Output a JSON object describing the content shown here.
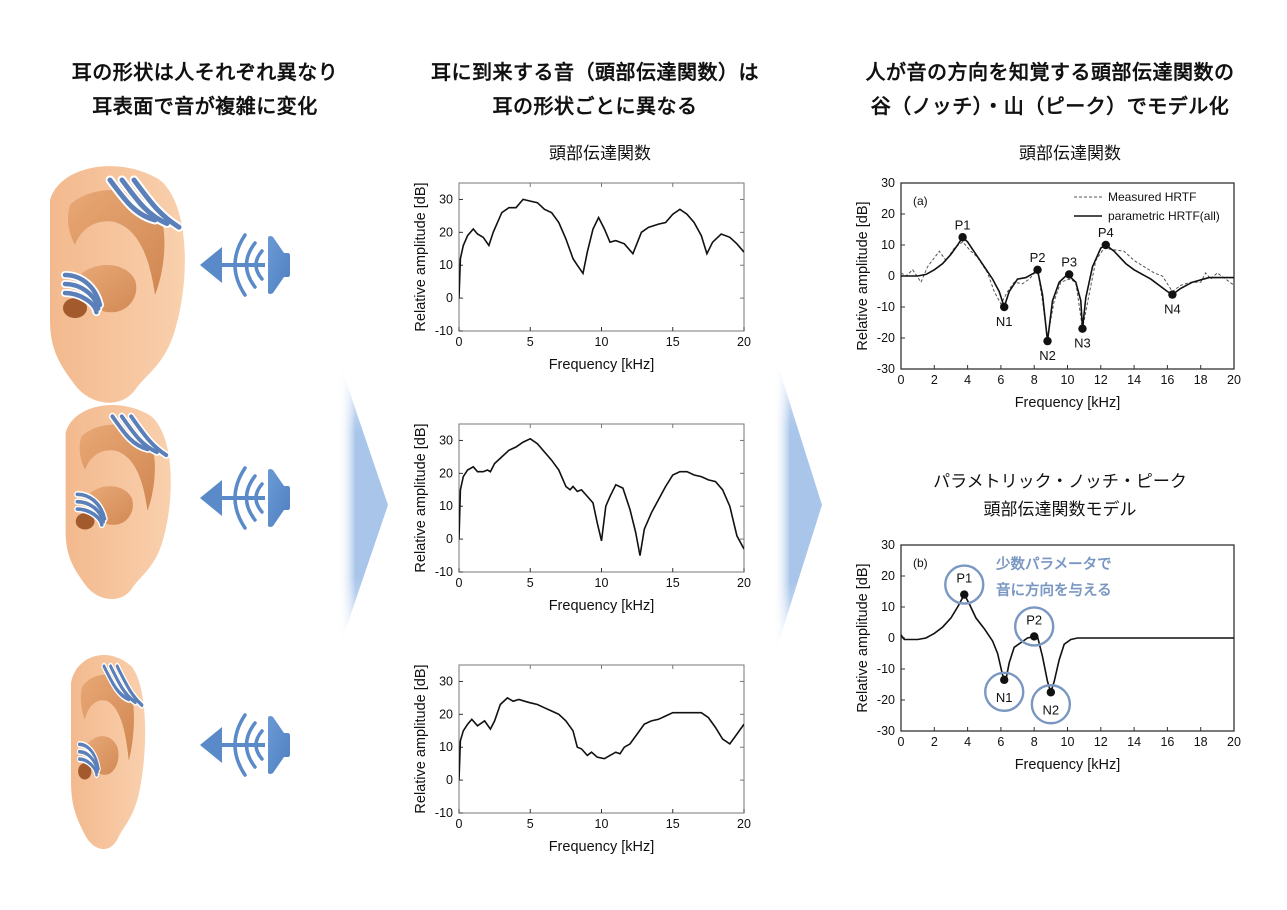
{
  "columns": [
    {
      "heading_line1": "耳の形状は人それぞれ異なり",
      "heading_line2": "耳表面で音が複雑に変化",
      "illustrations": [
        {
          "name": "ear-large",
          "icon": "ear-icon",
          "speaker_icon": "speaker-icon"
        },
        {
          "name": "ear-medium",
          "icon": "ear-icon",
          "speaker_icon": "speaker-icon"
        },
        {
          "name": "ear-small",
          "icon": "ear-icon",
          "speaker_icon": "speaker-icon"
        }
      ]
    },
    {
      "heading_line1": "耳に到来する音（頭部伝達関数）は",
      "heading_line2": "耳の形状ごとに異なる",
      "subtitle": "頭部伝達関数"
    },
    {
      "heading_line1": "人が音の方向を知覚する頭部伝達関数の",
      "heading_line2": "谷（ノッチ）・山（ピーク）でモデル化",
      "subtitle": "頭部伝達関数",
      "subtitle2_line1": "パラメトリック・ノッチ・ピーク",
      "subtitle2_line2": "頭部伝達関数モデル"
    }
  ],
  "colors": {
    "accent_blue": "#5b8ac8",
    "callout_blue": "#7a97c2",
    "arrow_blue": "#a9c6ea",
    "skin": "#f6c6a0",
    "skin_shadow": "#d98f58"
  },
  "chart_data": [
    {
      "id": "hrtf-ear-1",
      "type": "line",
      "title": "頭部伝達関数",
      "xlabel": "Frequency [kHz]",
      "ylabel": "Relative amplitude [dB]",
      "xlim": [
        0,
        20
      ],
      "ylim": [
        -10,
        35
      ],
      "xticks": [
        0,
        5,
        10,
        15,
        20
      ],
      "yticks": [
        -10,
        0,
        10,
        20,
        30
      ],
      "x": [
        0,
        0.1,
        0.3,
        0.6,
        1.0,
        1.3,
        1.7,
        2.1,
        2.4,
        3.0,
        3.5,
        4.0,
        4.5,
        5.0,
        5.5,
        6.0,
        6.5,
        7.0,
        7.5,
        8.0,
        8.3,
        8.7,
        9.0,
        9.4,
        9.8,
        10.2,
        10.6,
        11.0,
        11.6,
        12.2,
        12.8,
        13.3,
        14.0,
        14.5,
        15.0,
        15.5,
        16.0,
        16.5,
        17.0,
        17.4,
        17.8,
        18.4,
        19.0,
        19.5,
        20.0
      ],
      "y": [
        0,
        12,
        16,
        19,
        21,
        19.5,
        18.5,
        16,
        20,
        26,
        27.5,
        27.5,
        30,
        29.5,
        29,
        27,
        26,
        23,
        18,
        12,
        10,
        7.5,
        14,
        21,
        24.5,
        21,
        17,
        17.5,
        16.5,
        13.5,
        20,
        21.5,
        22.5,
        23,
        25.5,
        27,
        25.5,
        23,
        19,
        13.5,
        17,
        19.5,
        18.5,
        16.5,
        14
      ]
    },
    {
      "id": "hrtf-ear-2",
      "type": "line",
      "xlabel": "Frequency [kHz]",
      "ylabel": "Relative amplitude [dB]",
      "xlim": [
        0,
        20
      ],
      "ylim": [
        -10,
        35
      ],
      "xticks": [
        0,
        5,
        10,
        15,
        20
      ],
      "yticks": [
        -10,
        0,
        10,
        20,
        30
      ],
      "x": [
        0,
        0.1,
        0.3,
        0.6,
        1.0,
        1.3,
        1.7,
        2.0,
        2.2,
        2.5,
        3.0,
        3.5,
        4.0,
        4.5,
        5.0,
        5.5,
        6.0,
        6.5,
        7.0,
        7.5,
        7.8,
        8.0,
        8.3,
        8.6,
        9.0,
        9.4,
        9.7,
        10.0,
        10.3,
        10.6,
        11.0,
        11.5,
        12.0,
        12.4,
        12.7,
        13.0,
        13.5,
        14.0,
        14.5,
        15.0,
        15.5,
        16.0,
        16.5,
        17.0,
        17.5,
        18.0,
        18.5,
        19.0,
        19.5,
        20.0
      ],
      "y": [
        0,
        15,
        19,
        21,
        22,
        20.5,
        20.5,
        21,
        20.5,
        23,
        25,
        27,
        28,
        29.5,
        30.5,
        29,
        26.5,
        24,
        21,
        16,
        15,
        16,
        14.5,
        15,
        13,
        11,
        5,
        -0.5,
        10,
        13,
        16.5,
        15.5,
        9,
        2,
        -5,
        3,
        8,
        12,
        16,
        19.5,
        20.5,
        20.5,
        19.5,
        19,
        18,
        17.5,
        15,
        10,
        1,
        -3
      ]
    },
    {
      "id": "hrtf-ear-3",
      "type": "line",
      "xlabel": "Frequency [kHz]",
      "ylabel": "Relative amplitude [dB]",
      "xlim": [
        0,
        20
      ],
      "ylim": [
        -10,
        35
      ],
      "xticks": [
        0,
        5,
        10,
        15,
        20
      ],
      "yticks": [
        -10,
        0,
        10,
        20,
        30
      ],
      "x": [
        0,
        0.1,
        0.3,
        0.6,
        0.9,
        1.3,
        1.8,
        2.2,
        2.5,
        2.9,
        3.4,
        3.8,
        4.2,
        4.6,
        5.0,
        5.5,
        6.0,
        6.5,
        7.0,
        7.5,
        8.0,
        8.3,
        8.6,
        9.0,
        9.3,
        9.7,
        10.2,
        10.6,
        11.0,
        11.3,
        11.6,
        12.0,
        12.5,
        13.0,
        13.5,
        14.0,
        14.5,
        15.0,
        15.5,
        16.0,
        16.5,
        17.0,
        17.5,
        18.0,
        18.5,
        19.0,
        19.5,
        20.0
      ],
      "y": [
        0,
        12,
        15,
        17,
        18.5,
        16.5,
        18,
        15.5,
        18,
        23,
        25,
        24,
        24.5,
        24,
        23.5,
        23,
        22,
        21,
        20,
        18,
        15,
        10,
        9.5,
        7.5,
        8.5,
        7,
        6.5,
        7.5,
        8.5,
        8,
        10,
        11,
        14,
        17,
        18,
        18.5,
        19.5,
        20.5,
        20.5,
        20.5,
        20.5,
        20.5,
        19,
        16,
        12.5,
        11,
        14,
        17
      ]
    },
    {
      "id": "hrtf-measured-vs-parametric",
      "type": "line",
      "title": "頭部伝達関数",
      "panel_label": "(a)",
      "xlabel": "Frequency [kHz]",
      "ylabel": "Relative amplitude [dB]",
      "xlim": [
        0,
        20
      ],
      "ylim": [
        -30,
        30
      ],
      "xticks": [
        0,
        2,
        4,
        6,
        8,
        10,
        12,
        14,
        16,
        18,
        20
      ],
      "yticks": [
        -30,
        -20,
        -10,
        0,
        10,
        20,
        30
      ],
      "legend": [
        "Measured HRTF",
        "parametric HRTF(all)"
      ],
      "legend_position": "upper right",
      "series": [
        {
          "name": "Measured HRTF",
          "style": "dashed",
          "x": [
            0,
            0.3,
            0.7,
            1.2,
            1.6,
            2.3,
            2.7,
            3.2,
            3.7,
            4.2,
            4.6,
            5.2,
            5.6,
            6.0,
            6.4,
            6.8,
            7.3,
            7.7,
            8.2,
            8.5,
            8.8,
            9.2,
            9.6,
            10.1,
            10.5,
            10.9,
            11.3,
            11.7,
            12.2,
            12.7,
            13.4,
            14.0,
            14.6,
            15.2,
            15.7,
            16.3,
            16.8,
            17.4,
            18.0,
            18.3,
            18.6,
            19.0,
            19.5,
            20.0
          ],
          "y": [
            1,
            0,
            2,
            -2,
            3,
            8,
            5,
            9,
            11,
            8,
            6,
            1,
            -5,
            -9,
            -5,
            -2,
            -2.5,
            -1,
            2,
            -8,
            -20,
            -8,
            -2,
            -1,
            -2,
            -17,
            -6,
            5,
            9,
            8.5,
            8,
            5,
            3,
            1,
            0,
            -5,
            -3,
            -2,
            -2,
            1,
            -1,
            1,
            -1,
            -3
          ]
        },
        {
          "name": "parametric HRTF(all)",
          "style": "solid",
          "x": [
            0,
            0.5,
            1.0,
            1.5,
            2.0,
            2.5,
            3.0,
            3.4,
            3.7,
            4.0,
            4.5,
            5.0,
            5.5,
            5.9,
            6.2,
            6.5,
            7.0,
            7.5,
            8.0,
            8.2,
            8.5,
            8.8,
            9.1,
            9.5,
            10.0,
            10.5,
            10.8,
            10.9,
            11.1,
            11.5,
            12.0,
            12.3,
            12.8,
            13.5,
            14.0,
            15.0,
            16.0,
            16.3,
            16.8,
            17.5,
            18.5,
            20.0
          ],
          "y": [
            0,
            0,
            0,
            0.5,
            2,
            4,
            7,
            10,
            12.5,
            11,
            7,
            3,
            -1,
            -5,
            -10,
            -5,
            -1,
            -0.5,
            1,
            2,
            -6,
            -21,
            -8,
            -2,
            0.5,
            -2,
            -8,
            -17,
            -7,
            3,
            9,
            10,
            8,
            4,
            2,
            -1,
            -5,
            -6,
            -4,
            -2,
            -0.5,
            -0.5
          ]
        }
      ],
      "annotations": [
        {
          "label": "P1",
          "x": 3.7,
          "y": 12.5
        },
        {
          "label": "N1",
          "x": 6.2,
          "y": -10
        },
        {
          "label": "P2",
          "x": 8.2,
          "y": 2
        },
        {
          "label": "N2",
          "x": 8.8,
          "y": -21
        },
        {
          "label": "P3",
          "x": 10.1,
          "y": 0.5
        },
        {
          "label": "N3",
          "x": 10.9,
          "y": -17
        },
        {
          "label": "P4",
          "x": 12.3,
          "y": 10
        },
        {
          "label": "N4",
          "x": 16.3,
          "y": -6
        }
      ]
    },
    {
      "id": "parametric-notch-peak-model",
      "type": "line",
      "title": "パラメトリック・ノッチ・ピーク 頭部伝達関数モデル",
      "panel_label": "(b)",
      "callout_line1": "少数パラメータで",
      "callout_line2": "音に方向を与える",
      "xlabel": "Frequency [kHz]",
      "ylabel": "Relative amplitude [dB]",
      "xlim": [
        0,
        20
      ],
      "ylim": [
        -30,
        30
      ],
      "xticks": [
        0,
        2,
        4,
        6,
        8,
        10,
        12,
        14,
        16,
        18,
        20
      ],
      "yticks": [
        -30,
        -20,
        -10,
        0,
        10,
        20,
        30
      ],
      "x": [
        0,
        0.2,
        0.5,
        1.0,
        1.5,
        2.0,
        2.5,
        3.0,
        3.4,
        3.8,
        4.1,
        4.5,
        5.0,
        5.5,
        5.8,
        6.1,
        6.3,
        6.5,
        6.8,
        7.2,
        7.6,
        8.0,
        8.2,
        8.5,
        8.8,
        9.0,
        9.2,
        9.5,
        9.8,
        10.2,
        10.6,
        11.0,
        12.0,
        14.0,
        16.0,
        17.6,
        18.0,
        20.0
      ],
      "y": [
        1,
        -0.5,
        -0.5,
        -0.5,
        0,
        1.5,
        3.5,
        6.5,
        10,
        14,
        11,
        6.5,
        3,
        -1,
        -5,
        -12,
        -13.5,
        -8,
        -3,
        -1.5,
        0,
        0.5,
        0.5,
        -6,
        -14,
        -17.5,
        -14,
        -7,
        -2,
        -0.5,
        0,
        0,
        0,
        0,
        0,
        0,
        0,
        0
      ],
      "annotations": [
        {
          "label": "P1",
          "x": 3.8,
          "y": 14,
          "circled": true
        },
        {
          "label": "N1",
          "x": 6.2,
          "y": -13.5,
          "circled": true
        },
        {
          "label": "P2",
          "x": 8.0,
          "y": 0.5,
          "circled": true
        },
        {
          "label": "N2",
          "x": 9.0,
          "y": -17.5,
          "circled": true
        }
      ]
    }
  ]
}
